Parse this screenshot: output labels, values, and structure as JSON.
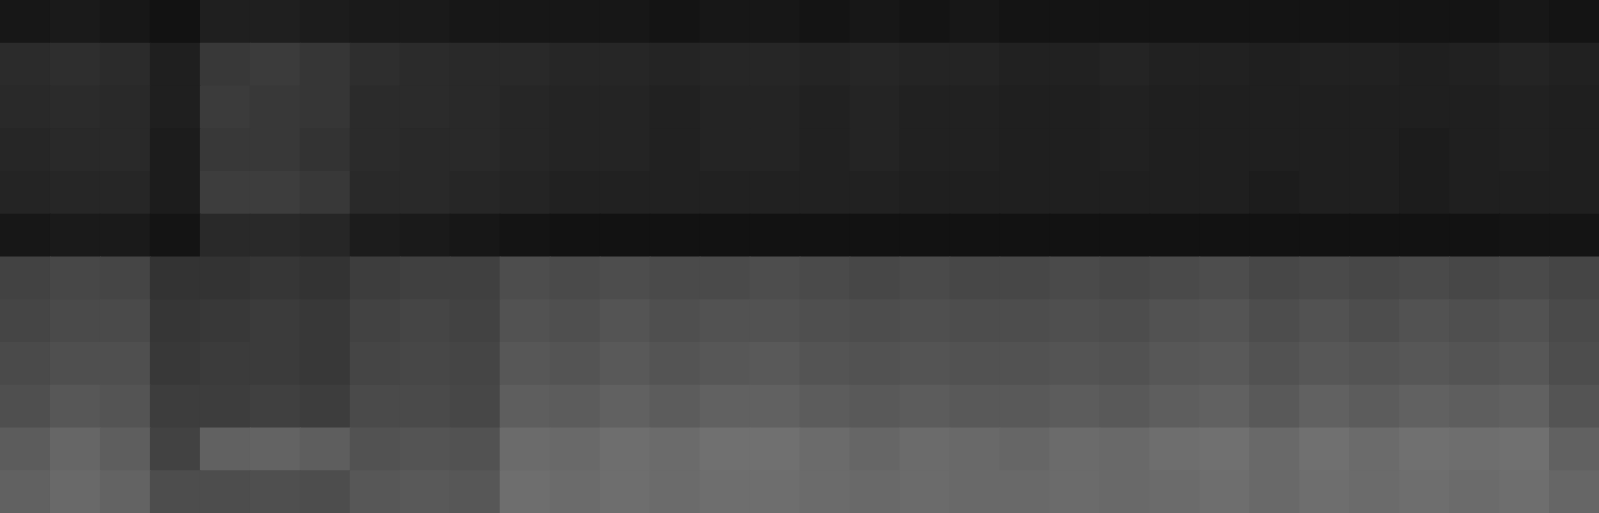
{
  "chart_data": {
    "type": "heatmap",
    "tick_labels": false,
    "color": "#ffffff",
    "color_range": [
      0,
      1
    ],
    "cells": [
      [
        0.09,
        0.1,
        0.09,
        0.07,
        0.12,
        0.12,
        0.11,
        0.1,
        0.1,
        0.09,
        0.09,
        0.09,
        0.09,
        0.08,
        0.09,
        0.09,
        0.08,
        0.09,
        0.08,
        0.09,
        0.08,
        0.08,
        0.08,
        0.08,
        0.08,
        0.08,
        0.08,
        0.08,
        0.08,
        0.08,
        0.09,
        0.08
      ],
      [
        0.17,
        0.18,
        0.17,
        0.12,
        0.22,
        0.23,
        0.21,
        0.18,
        0.17,
        0.16,
        0.16,
        0.15,
        0.15,
        0.14,
        0.15,
        0.15,
        0.14,
        0.15,
        0.14,
        0.14,
        0.13,
        0.13,
        0.14,
        0.13,
        0.13,
        0.12,
        0.13,
        0.13,
        0.12,
        0.13,
        0.14,
        0.13
      ],
      [
        0.16,
        0.17,
        0.16,
        0.12,
        0.23,
        0.22,
        0.21,
        0.17,
        0.17,
        0.16,
        0.15,
        0.14,
        0.14,
        0.13,
        0.14,
        0.14,
        0.13,
        0.14,
        0.13,
        0.13,
        0.12,
        0.12,
        0.13,
        0.12,
        0.12,
        0.12,
        0.12,
        0.12,
        0.12,
        0.12,
        0.13,
        0.12
      ],
      [
        0.15,
        0.16,
        0.16,
        0.11,
        0.22,
        0.22,
        0.2,
        0.17,
        0.16,
        0.16,
        0.15,
        0.14,
        0.14,
        0.13,
        0.14,
        0.14,
        0.13,
        0.14,
        0.13,
        0.13,
        0.12,
        0.12,
        0.13,
        0.12,
        0.12,
        0.12,
        0.12,
        0.12,
        0.11,
        0.12,
        0.13,
        0.12
      ],
      [
        0.14,
        0.15,
        0.15,
        0.11,
        0.24,
        0.24,
        0.22,
        0.16,
        0.16,
        0.15,
        0.14,
        0.13,
        0.13,
        0.13,
        0.13,
        0.13,
        0.13,
        0.13,
        0.12,
        0.12,
        0.12,
        0.12,
        0.12,
        0.12,
        0.12,
        0.11,
        0.12,
        0.12,
        0.11,
        0.12,
        0.12,
        0.12
      ],
      [
        0.09,
        0.1,
        0.1,
        0.08,
        0.16,
        0.16,
        0.15,
        0.11,
        0.1,
        0.09,
        0.08,
        0.07,
        0.07,
        0.07,
        0.07,
        0.07,
        0.07,
        0.07,
        0.07,
        0.07,
        0.07,
        0.07,
        0.07,
        0.07,
        0.07,
        0.07,
        0.07,
        0.07,
        0.07,
        0.07,
        0.08,
        0.08
      ],
      [
        0.26,
        0.28,
        0.27,
        0.2,
        0.2,
        0.21,
        0.2,
        0.24,
        0.25,
        0.25,
        0.3,
        0.29,
        0.3,
        0.29,
        0.29,
        0.3,
        0.29,
        0.28,
        0.29,
        0.28,
        0.28,
        0.29,
        0.28,
        0.29,
        0.3,
        0.28,
        0.29,
        0.28,
        0.29,
        0.28,
        0.29,
        0.27
      ],
      [
        0.27,
        0.29,
        0.29,
        0.21,
        0.22,
        0.23,
        0.22,
        0.26,
        0.27,
        0.26,
        0.32,
        0.31,
        0.33,
        0.31,
        0.32,
        0.32,
        0.31,
        0.3,
        0.31,
        0.3,
        0.3,
        0.31,
        0.3,
        0.32,
        0.33,
        0.3,
        0.32,
        0.3,
        0.32,
        0.31,
        0.32,
        0.29
      ],
      [
        0.29,
        0.31,
        0.31,
        0.22,
        0.23,
        0.23,
        0.22,
        0.27,
        0.28,
        0.27,
        0.34,
        0.33,
        0.35,
        0.33,
        0.34,
        0.35,
        0.33,
        0.32,
        0.33,
        0.32,
        0.32,
        0.33,
        0.32,
        0.34,
        0.35,
        0.32,
        0.34,
        0.33,
        0.34,
        0.33,
        0.34,
        0.3
      ],
      [
        0.31,
        0.34,
        0.33,
        0.24,
        0.24,
        0.25,
        0.24,
        0.29,
        0.29,
        0.28,
        0.37,
        0.36,
        0.38,
        0.36,
        0.38,
        0.38,
        0.36,
        0.35,
        0.36,
        0.35,
        0.35,
        0.36,
        0.35,
        0.37,
        0.38,
        0.35,
        0.38,
        0.36,
        0.38,
        0.37,
        0.38,
        0.33
      ],
      [
        0.36,
        0.4,
        0.37,
        0.26,
        0.38,
        0.39,
        0.37,
        0.32,
        0.33,
        0.32,
        0.42,
        0.41,
        0.43,
        0.42,
        0.44,
        0.44,
        0.42,
        0.4,
        0.42,
        0.41,
        0.4,
        0.42,
        0.41,
        0.43,
        0.44,
        0.41,
        0.44,
        0.42,
        0.44,
        0.43,
        0.44,
        0.38
      ],
      [
        0.38,
        0.41,
        0.39,
        0.3,
        0.3,
        0.31,
        0.3,
        0.34,
        0.35,
        0.34,
        0.43,
        0.42,
        0.43,
        0.42,
        0.43,
        0.43,
        0.42,
        0.41,
        0.42,
        0.41,
        0.41,
        0.42,
        0.41,
        0.42,
        0.43,
        0.41,
        0.43,
        0.42,
        0.43,
        0.42,
        0.43,
        0.4
      ]
    ]
  }
}
